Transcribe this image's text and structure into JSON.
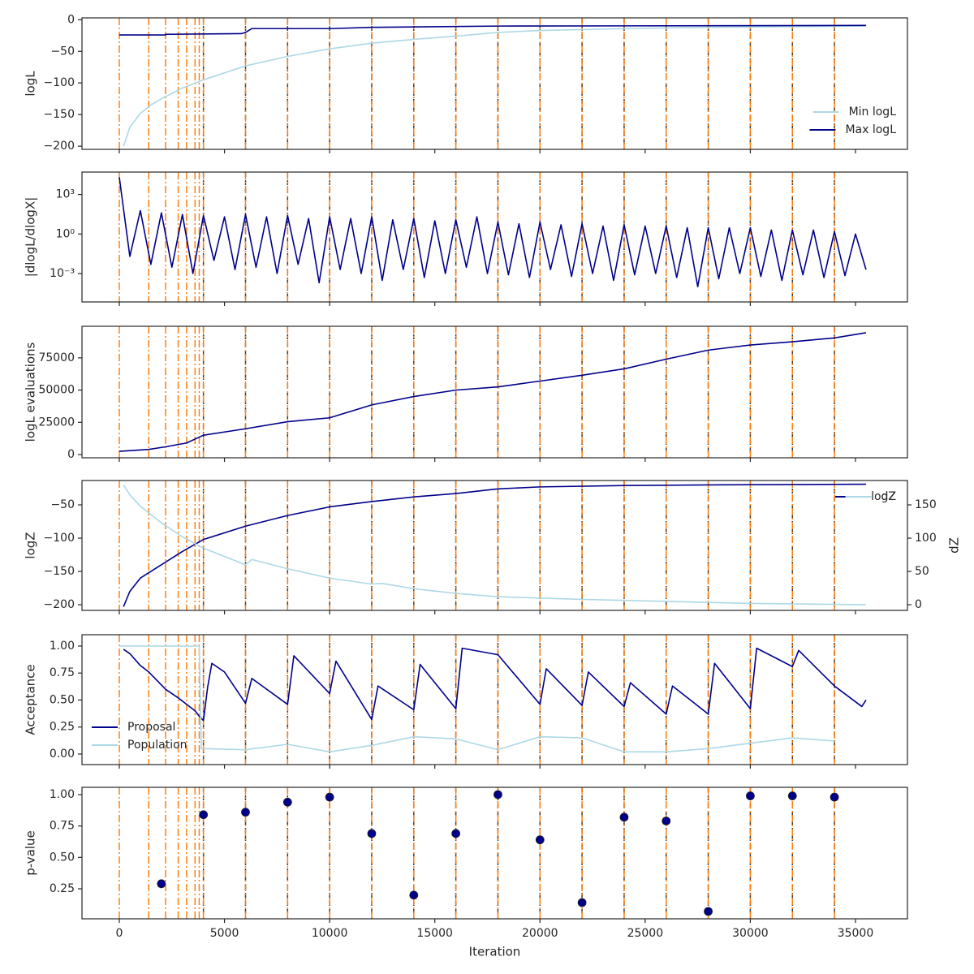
{
  "chart_data": [
    {
      "type": "line",
      "ylabel": "logL",
      "xlim": [
        -1775,
        37470
      ],
      "xticks": [
        0,
        5000,
        10000,
        15000,
        20000,
        25000,
        30000,
        35000
      ],
      "ylim": [
        -205,
        3
      ],
      "yticks": [
        0,
        {
          "value": -50,
          "label": "−50"
        },
        {
          "value": -100,
          "label": "−100"
        },
        {
          "value": -150,
          "label": "−150"
        },
        {
          "value": -200,
          "label": "−200"
        }
      ],
      "legend": "lower right",
      "vlines": [
        0,
        1400,
        2200,
        2800,
        3200,
        3600,
        3800,
        4000,
        6000,
        8000,
        10000,
        12000,
        14000,
        16000,
        18000,
        20000,
        22000,
        24000,
        26000,
        28000,
        30000,
        32000,
        34000
      ],
      "vlines_dashed": [
        4000,
        6000,
        8000,
        10000,
        12000,
        14000,
        16000,
        18000,
        20000,
        22000,
        24000,
        26000,
        28000,
        30000,
        32000,
        34000
      ],
      "series": [
        {
          "name": "Min logL",
          "color": "#add8e6",
          "x": [
            200,
            500,
            1000,
            1500,
            2000,
            3000,
            4000,
            6000,
            8000,
            10000,
            12000,
            14000,
            16000,
            18000,
            20000,
            24000,
            28000,
            32000,
            35500
          ],
          "values": [
            -200,
            -170,
            -148,
            -135,
            -125,
            -108,
            -95,
            -73,
            -58,
            -46,
            -37,
            -31,
            -26,
            -20,
            -17,
            -14,
            -12,
            -11,
            -10
          ]
        },
        {
          "name": "Max logL",
          "color": "#00008b",
          "x": [
            0,
            2200,
            2201,
            5800,
            6000,
            6300,
            10000,
            12000,
            18000,
            35500
          ],
          "values": [
            -24,
            -24,
            -23,
            -22,
            -20,
            -14,
            -14,
            -12,
            -10,
            -9
          ]
        }
      ]
    },
    {
      "type": "line",
      "ylabel": "|dlogL/dlogX|",
      "log_y": true,
      "xlim": [
        -1775,
        37470
      ],
      "xticks": [
        0,
        5000,
        10000,
        15000,
        20000,
        25000,
        30000,
        35000
      ],
      "ylim": [
        7e-06,
        50000
      ],
      "yticks": [
        {
          "value": 0.001,
          "label": "10⁻³"
        },
        {
          "value": 1,
          "label": "10⁰"
        },
        {
          "value": 1000,
          "label": "10³"
        }
      ],
      "vlines": [
        0,
        1400,
        2200,
        2800,
        3200,
        3600,
        3800,
        4000,
        6000,
        8000,
        10000,
        12000,
        14000,
        16000,
        18000,
        20000,
        22000,
        24000,
        26000,
        28000,
        30000,
        32000,
        34000
      ],
      "vlines_dashed": [
        4000,
        6000,
        8000,
        10000,
        12000,
        14000,
        16000,
        18000,
        20000,
        22000,
        24000,
        26000,
        28000,
        30000,
        32000,
        34000
      ],
      "series": [
        {
          "color": "#00008b",
          "x": [
            0,
            500,
            1000,
            1500,
            2000,
            2500,
            3000,
            3500,
            4000,
            4500,
            5000,
            5500,
            6000,
            6500,
            7000,
            7500,
            8000,
            8500,
            9000,
            9500,
            10000,
            10500,
            11000,
            11500,
            12000,
            12500,
            13000,
            13500,
            14000,
            14500,
            15000,
            15500,
            16000,
            16500,
            17000,
            17500,
            18000,
            18500,
            19000,
            19500,
            20000,
            20500,
            21000,
            21500,
            22000,
            22500,
            23000,
            23500,
            24000,
            24500,
            25000,
            25500,
            26000,
            26500,
            27000,
            27500,
            28000,
            28500,
            29000,
            29500,
            30000,
            30500,
            31000,
            31500,
            32000,
            32500,
            33000,
            33500,
            34000,
            34500,
            35000,
            35500
          ],
          "values": [
            20000,
            0.02,
            60,
            0.005,
            40,
            0.003,
            30,
            0.001,
            25,
            0.01,
            20,
            0.002,
            30,
            0.003,
            20,
            0.001,
            25,
            0.005,
            15,
            0.0002,
            20,
            0.002,
            15,
            0.001,
            20,
            0.0003,
            12,
            0.002,
            15,
            0.0005,
            10,
            0.001,
            12,
            0.003,
            20,
            0.001,
            8,
            0.0008,
            6,
            0.0005,
            8,
            0.002,
            5,
            0.0006,
            6,
            0.001,
            4,
            0.0003,
            5,
            0.0008,
            4,
            0.001,
            4,
            0.0005,
            3,
            0.0001,
            3,
            0.0004,
            3,
            0.001,
            3,
            0.0006,
            2,
            0.0003,
            2,
            0.0008,
            2,
            0.0005,
            1.5,
            0.0007,
            1,
            0.002
          ]
        }
      ]
    },
    {
      "type": "line",
      "ylabel": "logL evaluations",
      "xlim": [
        -1775,
        37470
      ],
      "xticks": [
        0,
        5000,
        10000,
        15000,
        20000,
        25000,
        30000,
        35000
      ],
      "ylim": [
        -2500,
        99500
      ],
      "yticks": [
        0,
        25000,
        50000,
        75000
      ],
      "vlines": [
        0,
        1400,
        2200,
        2800,
        3200,
        3600,
        3800,
        4000,
        6000,
        8000,
        10000,
        12000,
        14000,
        16000,
        18000,
        20000,
        22000,
        24000,
        26000,
        28000,
        30000,
        32000,
        34000
      ],
      "vlines_dashed": [
        4000,
        6000,
        8000,
        10000,
        12000,
        14000,
        16000,
        18000,
        20000,
        22000,
        24000,
        26000,
        28000,
        30000,
        32000,
        34000
      ],
      "series": [
        {
          "color": "#00008b",
          "x": [
            0,
            1400,
            2200,
            3200,
            4000,
            6000,
            8000,
            10000,
            12000,
            14000,
            16000,
            18000,
            20000,
            22000,
            24000,
            26000,
            28000,
            30000,
            32000,
            34000,
            35500
          ],
          "values": [
            2500,
            4000,
            6000,
            9000,
            15000,
            20000,
            25500,
            28500,
            38500,
            45000,
            50000,
            52500,
            57000,
            61500,
            66500,
            74000,
            81000,
            85000,
            87500,
            90500,
            94500
          ]
        }
      ]
    },
    {
      "type": "line",
      "ylabel": "logZ",
      "y2label": "dZ",
      "xlim": [
        -1775,
        37470
      ],
      "xticks": [
        0,
        5000,
        10000,
        15000,
        20000,
        25000,
        30000,
        35000
      ],
      "ylim": [
        -208.5,
        -13.4
      ],
      "yticks": [
        {
          "value": -50,
          "label": "−50"
        },
        {
          "value": -100,
          "label": "−100"
        },
        {
          "value": -150,
          "label": "−150"
        },
        {
          "value": -200,
          "label": "−200"
        }
      ],
      "y2lim": [
        -8.5,
        186.6
      ],
      "y2ticks": [
        0,
        50,
        100,
        150
      ],
      "legend": "upper right",
      "vlines": [
        0,
        1400,
        2200,
        2800,
        3200,
        3600,
        3800,
        4000,
        6000,
        8000,
        10000,
        12000,
        14000,
        16000,
        18000,
        20000,
        22000,
        24000,
        26000,
        28000,
        30000,
        32000,
        34000
      ],
      "vlines_dashed": [
        4000,
        6000,
        8000,
        10000,
        12000,
        14000,
        16000,
        18000,
        20000,
        22000,
        24000,
        26000,
        28000,
        30000,
        32000,
        34000
      ],
      "series": [
        {
          "name": "logZ",
          "color": "#00008b",
          "x": [
            200,
            500,
            1000,
            2000,
            3000,
            4000,
            6000,
            8000,
            10000,
            12000,
            14000,
            16000,
            18000,
            20000,
            24000,
            28000,
            35500
          ],
          "values": [
            -203,
            -180,
            -160,
            -140,
            -120,
            -102,
            -82,
            -66,
            -53,
            -45,
            -38,
            -33,
            -26,
            -23,
            -21,
            -20,
            -19
          ]
        },
        {
          "name": "dZ",
          "color": "#add8e6",
          "axis": "y2",
          "x": [
            200,
            500,
            1000,
            2000,
            3000,
            4000,
            6000,
            6300,
            8000,
            10000,
            12000,
            12500,
            14000,
            16000,
            18000,
            22000,
            26000,
            30000,
            35500
          ],
          "values": [
            180,
            165,
            148,
            123,
            102,
            85,
            60,
            68,
            54,
            40,
            31,
            32,
            24,
            17,
            12,
            8,
            5,
            2,
            0
          ]
        }
      ]
    },
    {
      "type": "line",
      "ylabel": "Acceptance",
      "xlim": [
        -1775,
        37470
      ],
      "xticks": [
        0,
        5000,
        10000,
        15000,
        20000,
        25000,
        30000,
        35000
      ],
      "ylim": [
        -0.098,
        1.105
      ],
      "yticks": [
        {
          "value": 0,
          "label": "0.00"
        },
        {
          "value": 0.25,
          "label": "0.25"
        },
        {
          "value": 0.5,
          "label": "0.50"
        },
        {
          "value": 0.75,
          "label": "0.75"
        },
        {
          "value": 1,
          "label": "1.00"
        }
      ],
      "legend": "lower left",
      "vlines": [
        0,
        1400,
        2200,
        2800,
        3200,
        3600,
        3800,
        4000,
        6000,
        8000,
        10000,
        12000,
        14000,
        16000,
        18000,
        20000,
        22000,
        24000,
        26000,
        28000,
        30000,
        32000,
        34000
      ],
      "vlines_dashed": [
        4000,
        6000,
        8000,
        10000,
        12000,
        14000,
        16000,
        18000,
        20000,
        22000,
        24000,
        26000,
        28000,
        30000,
        32000,
        34000
      ],
      "series": [
        {
          "name": "Proposal",
          "color": "#00008b",
          "x": [
            200,
            500,
            1000,
            1400,
            2200,
            2800,
            3200,
            3600,
            3800,
            4000,
            4200,
            4400,
            5000,
            6000,
            6300,
            8000,
            8300,
            10000,
            10300,
            12000,
            12300,
            14000,
            14300,
            16000,
            16300,
            18000,
            20000,
            20300,
            22000,
            22300,
            24000,
            24300,
            26000,
            26300,
            28000,
            28300,
            30000,
            30300,
            32000,
            32300,
            34000,
            35300,
            35500
          ],
          "values": [
            0.97,
            0.93,
            0.82,
            0.76,
            0.6,
            0.52,
            0.46,
            0.4,
            0.35,
            0.31,
            0.62,
            0.84,
            0.76,
            0.47,
            0.7,
            0.46,
            0.91,
            0.56,
            0.86,
            0.32,
            0.63,
            0.41,
            0.83,
            0.42,
            0.98,
            0.92,
            0.46,
            0.79,
            0.45,
            0.76,
            0.44,
            0.66,
            0.37,
            0.63,
            0.37,
            0.84,
            0.42,
            0.98,
            0.81,
            0.96,
            0.63,
            0.44,
            0.5
          ]
        },
        {
          "name": "Population",
          "color": "#add8e6",
          "x": [
            0,
            3800,
            3900,
            4000,
            6000,
            8000,
            10000,
            12000,
            14000,
            16000,
            18000,
            20000,
            22000,
            24000,
            26000,
            28000,
            30000,
            32000,
            34000
          ],
          "values": [
            1.0,
            1.0,
            0.05,
            0.05,
            0.04,
            0.09,
            0.02,
            0.08,
            0.16,
            0.14,
            0.04,
            0.16,
            0.15,
            0.02,
            0.02,
            0.05,
            0.1,
            0.15,
            0.12
          ]
        }
      ]
    },
    {
      "type": "scatter",
      "ylabel": "p-value",
      "xlabel": "Iteration",
      "xlim": [
        -1775,
        37470
      ],
      "xticks": [
        0,
        5000,
        10000,
        15000,
        20000,
        25000,
        30000,
        35000
      ],
      "ylim": [
        0.011,
        1.058
      ],
      "yticks": [
        {
          "value": 0.25,
          "label": "0.25"
        },
        {
          "value": 0.5,
          "label": "0.50"
        },
        {
          "value": 0.75,
          "label": "0.75"
        },
        {
          "value": 1,
          "label": "1.00"
        }
      ],
      "vlines": [
        0,
        1400,
        2200,
        2800,
        3200,
        3600,
        3800,
        4000,
        6000,
        8000,
        10000,
        12000,
        14000,
        16000,
        18000,
        20000,
        22000,
        24000,
        26000,
        28000,
        30000,
        32000,
        34000
      ],
      "vlines_dashed": [
        4000,
        6000,
        8000,
        10000,
        12000,
        14000,
        16000,
        18000,
        20000,
        22000,
        24000,
        26000,
        28000,
        30000,
        32000,
        34000
      ],
      "series": [
        {
          "color": "#00008b",
          "x": [
            2000,
            4000,
            6000,
            8000,
            10000,
            12000,
            14000,
            16000,
            18000,
            20000,
            22000,
            24000,
            26000,
            28000,
            30000,
            32000,
            34000
          ],
          "values": [
            0.29,
            0.84,
            0.86,
            0.94,
            0.98,
            0.69,
            0.2,
            0.69,
            1.0,
            0.64,
            0.14,
            0.82,
            0.79,
            0.07,
            0.99,
            0.99,
            0.98
          ]
        }
      ]
    }
  ]
}
